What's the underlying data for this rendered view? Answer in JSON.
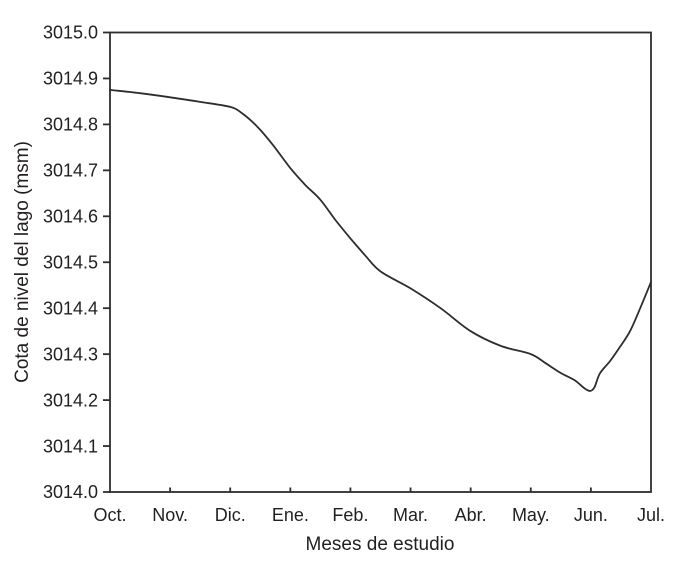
{
  "figure": {
    "background": "#ffffff",
    "axis_color": "#2d2d2d",
    "line_color": "#2d2d2d",
    "text_color": "#231f20"
  },
  "chart_data": {
    "type": "line",
    "title": "",
    "xlabel": "Meses de estudio",
    "ylabel": "Cota de nivel del lago (msm)",
    "categories": [
      "Oct.",
      "Nov.",
      "Dic.",
      "Ene.",
      "Feb.",
      "Mar.",
      "Abr.",
      "May.",
      "Jun.",
      "Jul."
    ],
    "series": [
      {
        "name": "Cota de nivel del lago",
        "values": [
          3014.88,
          3014.86,
          3014.84,
          3014.7,
          3014.55,
          3014.44,
          3014.35,
          3014.3,
          3014.22,
          3014.46
        ]
      }
    ],
    "ylim": [
      3014.0,
      3015.0
    ],
    "y_tick_step": 0.1,
    "y_tick_labels": [
      "3014.0",
      "3014.1",
      "3014.2",
      "3014.3",
      "3014.4",
      "3014.5",
      "3014.6",
      "3014.7",
      "3014.8",
      "3014.9",
      "3015.0"
    ],
    "x_ticks_with_marks": [
      "Nov.",
      "Dic.",
      "Ene.",
      "Feb.",
      "Mar.",
      "Abr.",
      "May.",
      "Jun."
    ],
    "grid": false,
    "legend": "none",
    "curve_points": [
      [
        0.0,
        3014.875
      ],
      [
        0.5,
        3014.868
      ],
      [
        1.0,
        3014.859
      ],
      [
        1.5,
        3014.849
      ],
      [
        2.0,
        3014.838
      ],
      [
        2.2,
        3014.824
      ],
      [
        2.45,
        3014.795
      ],
      [
        2.7,
        3014.757
      ],
      [
        3.0,
        3014.705
      ],
      [
        3.25,
        3014.668
      ],
      [
        3.5,
        3014.636
      ],
      [
        3.75,
        3014.592
      ],
      [
        4.0,
        3014.552
      ],
      [
        4.25,
        3014.514
      ],
      [
        4.5,
        3014.48
      ],
      [
        5.0,
        3014.443
      ],
      [
        5.5,
        3014.4
      ],
      [
        6.0,
        3014.35
      ],
      [
        6.5,
        3014.318
      ],
      [
        7.0,
        3014.3
      ],
      [
        7.25,
        3014.28
      ],
      [
        7.5,
        3014.259
      ],
      [
        7.73,
        3014.243
      ],
      [
        7.9,
        3014.225
      ],
      [
        7.99,
        3014.22
      ],
      [
        8.06,
        3014.228
      ],
      [
        8.15,
        3014.258
      ],
      [
        8.32,
        3014.285
      ],
      [
        8.48,
        3014.315
      ],
      [
        8.65,
        3014.35
      ],
      [
        8.82,
        3014.4
      ],
      [
        9.0,
        3014.457
      ]
    ]
  }
}
